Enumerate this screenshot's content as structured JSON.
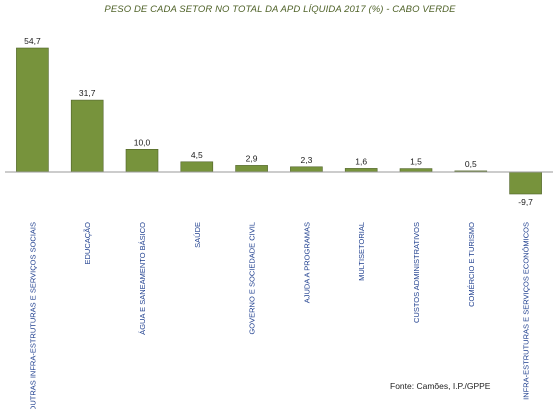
{
  "chart_data": {
    "type": "bar",
    "title": "PESO DE CADA SETOR NO TOTAL DA APD LÍQUIDA 2017 (%) - CABO VERDE",
    "categories": [
      "OUTRAS INFRA-ESTRUTURAS E SERVIÇOS SOCIAIS",
      "EDUCAÇÃO",
      "ÁGUA E SANEAMENTO BÁSICO",
      "SAÚDE",
      "GOVERNO E SOCIEDADE CIVIL",
      "AJUDA A PROGRAMAS",
      "MULTISETORIAL",
      "CUSTOS ADMINISTRATIVOS",
      "COMÉRCIO E TURISMO",
      "INFRA-ESTRUTURAS E SERVIÇOS ECONÓMICOS"
    ],
    "values": [
      54.7,
      31.7,
      10.0,
      4.5,
      2.9,
      2.3,
      1.6,
      1.5,
      0.5,
      -9.7
    ],
    "value_labels": [
      "54,7",
      "31,7",
      "10,0",
      "4,5",
      "2,9",
      "2,3",
      "1,6",
      "1,5",
      "0,5",
      "-9,7"
    ],
    "xlabel": "",
    "ylabel": "",
    "ylim": [
      -9.7,
      54.7
    ],
    "grid": false,
    "bar_color": "#77933c",
    "bar_edge_color": "#4f6228",
    "title_color": "#4f6228",
    "category_label_color": "#1f3f8f"
  },
  "source": "Fonte: Camões, I.P./GPPE"
}
